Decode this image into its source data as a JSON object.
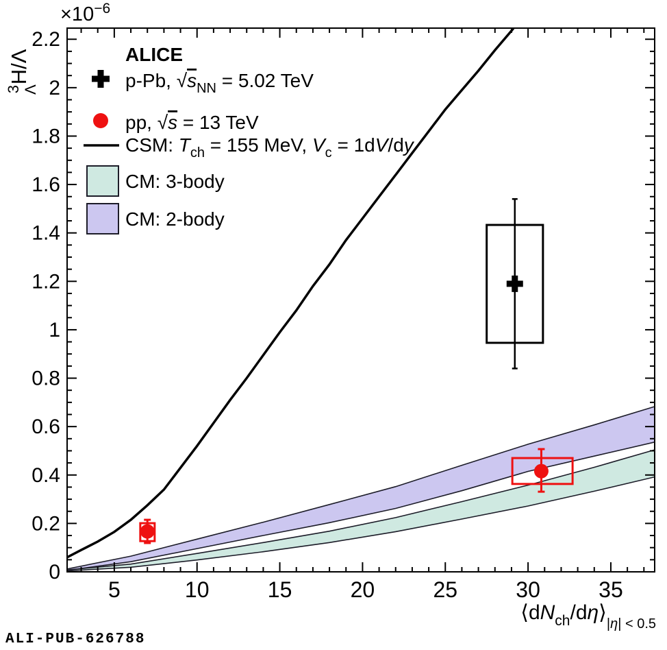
{
  "figure": {
    "watermark": "ALI-PUB-626788"
  },
  "colors": {
    "red": "#ee1111",
    "black": "#000000",
    "band2_fill": "#ccc7f0",
    "band3_fill": "#cfe9e1",
    "band_edge": "#1c1c28",
    "watermark": "#b2b2b2",
    "frame": "#000000"
  },
  "axes": {
    "x": {
      "tick_labels": [
        "5",
        "10",
        "15",
        "20",
        "25",
        "30",
        "35"
      ],
      "title": {
        "p1": "⟨d",
        "N": "N",
        "sub": "ch",
        "p2": "/d",
        "eta": "η",
        "p3": "⟩",
        "c1": "|",
        "c2": "η",
        "c3": "| < 0.5"
      }
    },
    "y": {
      "tick_labels": [
        "0",
        "0.2",
        "0.4",
        "0.6",
        "0.8",
        "1",
        "1.2",
        "1.4",
        "1.6",
        "1.8",
        "2",
        "2.2"
      ],
      "exp": {
        "base": "×10",
        "power": "−6"
      },
      "title": {
        "sup": "3",
        "sub": "Λ",
        "main": "H/Λ"
      }
    }
  },
  "legend": {
    "title": "ALICE",
    "ppb": {
      "pre": "p-Pb, ",
      "sqrt": "√",
      "s": "s",
      "sub": "NN",
      "post": " = 5.02 TeV"
    },
    "pp": {
      "pre": "pp, ",
      "sqrt": "√",
      "s": "s",
      "post": " = 13 TeV"
    },
    "csm": {
      "p1": "CSM: ",
      "T": "T",
      "Tsub": "ch",
      "p2": " = 155 MeV, ",
      "V": "V",
      "Vsub": "c",
      "p3": " = 1d",
      "V2": "V",
      "p4": "/d",
      "y": "y"
    },
    "cm3": "CM: 3-body",
    "cm2": "CM: 2-body"
  },
  "chart_data": {
    "type": "scatter",
    "title": "Hypertriton-to-Lambda ratio vs charged-particle multiplicity",
    "xlabel": "⟨dNch/dη⟩ |η| < 0.5",
    "ylabel": "3ΛH/Λ (×10⁻⁶)",
    "x_axis": {
      "min": 2.15,
      "max": 37.65,
      "major_ticks": [
        5,
        10,
        15,
        20,
        25,
        30,
        35
      ],
      "minor_step": 1,
      "grid": false
    },
    "y_axis": {
      "min": 0,
      "max": 2.246,
      "major_step": 0.2,
      "minor_step": 0.05,
      "scale_factor": "1e-6",
      "grid": false
    },
    "legend_position": "top-left",
    "series": [
      {
        "name": "CM: 2-body",
        "type": "band",
        "fill": "#ccc7f0",
        "edge": "#1c1c28",
        "upper": [
          [
            2.15,
            0.012
          ],
          [
            6,
            0.065
          ],
          [
            10,
            0.135
          ],
          [
            14,
            0.205
          ],
          [
            18,
            0.278
          ],
          [
            22,
            0.352
          ],
          [
            26,
            0.44
          ],
          [
            30,
            0.527
          ],
          [
            34,
            0.607
          ],
          [
            37.65,
            0.683
          ]
        ],
        "lower": [
          [
            2.15,
            0.006
          ],
          [
            6,
            0.042
          ],
          [
            10,
            0.096
          ],
          [
            14,
            0.15
          ],
          [
            18,
            0.203
          ],
          [
            22,
            0.262
          ],
          [
            26,
            0.335
          ],
          [
            30,
            0.415
          ],
          [
            34,
            0.478
          ],
          [
            37.65,
            0.536
          ]
        ]
      },
      {
        "name": "CM: 3-body",
        "type": "band",
        "fill": "#cfe9e1",
        "edge": "#1c1c28",
        "upper": [
          [
            2.15,
            0.008
          ],
          [
            6,
            0.032
          ],
          [
            10,
            0.076
          ],
          [
            14,
            0.121
          ],
          [
            18,
            0.168
          ],
          [
            22,
            0.224
          ],
          [
            26,
            0.29
          ],
          [
            30,
            0.358
          ],
          [
            34,
            0.432
          ],
          [
            37.65,
            0.504
          ]
        ],
        "lower": [
          [
            2.15,
            0.004
          ],
          [
            6,
            0.019
          ],
          [
            10,
            0.049
          ],
          [
            14,
            0.083
          ],
          [
            18,
            0.121
          ],
          [
            22,
            0.166
          ],
          [
            26,
            0.218
          ],
          [
            30,
            0.272
          ],
          [
            34,
            0.333
          ],
          [
            37.65,
            0.392
          ]
        ]
      },
      {
        "name": "CSM: Tch = 155 MeV, Vc = 1dV/dy",
        "type": "line",
        "color": "#000000",
        "points": [
          [
            2.15,
            0.06
          ],
          [
            3,
            0.09
          ],
          [
            4,
            0.125
          ],
          [
            5,
            0.165
          ],
          [
            6,
            0.215
          ],
          [
            7,
            0.275
          ],
          [
            8,
            0.34
          ],
          [
            9,
            0.43
          ],
          [
            10,
            0.52
          ],
          [
            11,
            0.615
          ],
          [
            12,
            0.71
          ],
          [
            13,
            0.8
          ],
          [
            14,
            0.895
          ],
          [
            15,
            0.99
          ],
          [
            16,
            1.08
          ],
          [
            17,
            1.18
          ],
          [
            18,
            1.27
          ],
          [
            19,
            1.37
          ],
          [
            20,
            1.46
          ],
          [
            21,
            1.55
          ],
          [
            22,
            1.64
          ],
          [
            23,
            1.73
          ],
          [
            24,
            1.82
          ],
          [
            25,
            1.91
          ],
          [
            26,
            1.99
          ],
          [
            27,
            2.07
          ],
          [
            28,
            2.155
          ],
          [
            29,
            2.235
          ],
          [
            29.4,
            2.27
          ]
        ]
      },
      {
        "name": "p-Pb, √sNN = 5.02 TeV",
        "type": "point",
        "marker": "cross",
        "color": "#000000",
        "x": 29.2,
        "y": 1.19,
        "stat_lo": 0.35,
        "stat_hi": 0.35,
        "box": {
          "x_lo": 27.5,
          "x_hi": 30.9,
          "y_lo": 0.946,
          "y_hi": 1.433
        }
      },
      {
        "name": "pp, √s = 13 TeV (low multiplicity)",
        "type": "point",
        "marker": "circle",
        "color": "#ee1111",
        "x": 7.0,
        "y": 0.167,
        "stat_lo": 0.048,
        "stat_hi": 0.048,
        "box": {
          "x_lo": 6.57,
          "x_hi": 7.44,
          "y_lo": 0.127,
          "y_hi": 0.201
        }
      },
      {
        "name": "pp, √s = 13 TeV (high multiplicity)",
        "type": "point",
        "marker": "circle",
        "color": "#ee1111",
        "x": 30.8,
        "y": 0.416,
        "stat_lo": 0.085,
        "stat_hi": 0.091,
        "box": {
          "x_lo": 29.05,
          "x_hi": 32.69,
          "y_lo": 0.363,
          "y_hi": 0.47
        }
      }
    ]
  }
}
